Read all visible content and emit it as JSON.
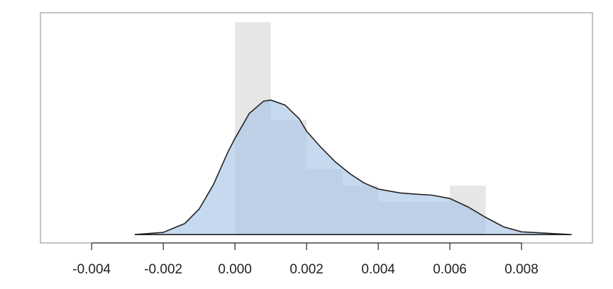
{
  "chart_data": {
    "type": "histogram",
    "bins": [
      0.0,
      0.001,
      0.002,
      0.003,
      0.004,
      0.005,
      0.006,
      0.007
    ],
    "values": [
      382,
      206,
      118,
      88,
      59,
      59,
      88
    ],
    "color": "#e6e6e6",
    "kde": {
      "x": [
        -0.0028,
        -0.002,
        -0.0014,
        -0.001,
        -0.0006,
        -0.0002,
        0.0,
        0.0004,
        0.0008,
        0.001,
        0.0014,
        0.0018,
        0.002,
        0.0024,
        0.0028,
        0.0032,
        0.0036,
        0.004,
        0.0046,
        0.005,
        0.0055,
        0.006,
        0.0065,
        0.007,
        0.0075,
        0.008,
        0.0094
      ],
      "values": [
        0,
        4,
        20,
        46,
        90,
        148,
        173,
        218,
        240,
        242,
        233,
        208,
        186,
        157,
        131,
        110,
        93,
        82,
        75,
        73,
        71,
        65,
        50,
        31,
        14,
        5,
        0
      ],
      "color": "#a8c5e6",
      "line_color": "#222222"
    },
    "xlim": [
      -0.00543,
      0.00998
    ],
    "ylim": [
      -15,
      399
    ],
    "xticks": [
      -0.004,
      -0.002,
      {
        "value": 0,
        "label": "0.000"
      },
      0.002,
      0.004,
      0.006,
      0.008
    ]
  }
}
